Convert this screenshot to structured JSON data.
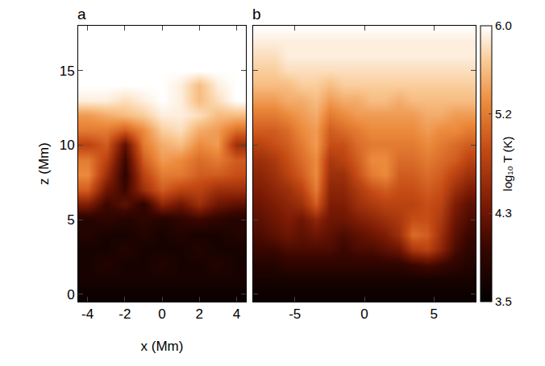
{
  "chart_data": [
    {
      "type": "heatmap",
      "title": "a",
      "x_label": "x (Mm)",
      "y_label": "z (Mm)",
      "x": [
        -4,
        -3,
        -2,
        -1,
        0,
        1,
        2,
        3,
        4
      ],
      "y": [
        0,
        1,
        2,
        3,
        4,
        5,
        6,
        7,
        8,
        9,
        10,
        11,
        12,
        13,
        14,
        15,
        16,
        17,
        18
      ],
      "xlim": [
        -4.5,
        4.5
      ],
      "xticks": [
        -4,
        -2,
        0,
        2,
        4
      ],
      "ylim": [
        -0.5,
        18
      ],
      "yticks": [
        0,
        5,
        10,
        15
      ],
      "values": [
        [
          3.6,
          3.6,
          3.6,
          3.6,
          3.6,
          3.6,
          3.6,
          3.6,
          3.6
        ],
        [
          3.7,
          3.7,
          3.7,
          3.7,
          3.7,
          3.7,
          3.7,
          3.7,
          3.7
        ],
        [
          3.7,
          3.8,
          3.7,
          3.7,
          3.8,
          3.7,
          3.7,
          3.8,
          3.7
        ],
        [
          3.7,
          3.7,
          3.8,
          3.7,
          3.7,
          3.7,
          3.8,
          3.7,
          3.7
        ],
        [
          3.8,
          3.7,
          3.7,
          3.8,
          3.7,
          3.8,
          3.7,
          3.7,
          3.8
        ],
        [
          3.8,
          3.9,
          3.8,
          3.9,
          3.8,
          3.9,
          4.0,
          3.9,
          3.8
        ],
        [
          4.4,
          4.0,
          4.2,
          3.9,
          4.5,
          4.3,
          4.6,
          4.3,
          4.2
        ],
        [
          5.0,
          4.3,
          4.0,
          4.6,
          5.0,
          4.8,
          4.8,
          4.6,
          4.6
        ],
        [
          5.3,
          4.6,
          3.9,
          4.8,
          5.2,
          5.2,
          5.0,
          5.0,
          4.9
        ],
        [
          5.2,
          4.8,
          4.0,
          5.0,
          5.4,
          5.3,
          5.1,
          5.2,
          5.0
        ],
        [
          4.8,
          5.0,
          4.2,
          5.2,
          5.5,
          5.6,
          5.3,
          5.4,
          4.6
        ],
        [
          5.2,
          5.2,
          5.0,
          5.3,
          5.7,
          5.8,
          5.5,
          5.4,
          5.1
        ],
        [
          5.4,
          5.5,
          5.6,
          5.7,
          5.9,
          5.9,
          5.8,
          5.6,
          5.6
        ],
        [
          5.9,
          5.9,
          5.8,
          5.9,
          6.0,
          5.9,
          5.6,
          5.8,
          6.0
        ],
        [
          6.0,
          6.0,
          6.0,
          6.0,
          6.0,
          5.9,
          5.6,
          5.9,
          6.0
        ],
        [
          6.0,
          6.0,
          6.0,
          6.0,
          6.0,
          6.0,
          6.0,
          6.0,
          6.0
        ],
        [
          6.0,
          6.0,
          6.0,
          6.0,
          6.0,
          6.0,
          6.0,
          6.0,
          6.0
        ],
        [
          6.0,
          6.0,
          6.0,
          6.0,
          6.0,
          6.0,
          6.0,
          6.0,
          6.0
        ],
        [
          6.0,
          6.0,
          6.0,
          6.0,
          6.0,
          6.0,
          6.0,
          6.0,
          6.0
        ]
      ]
    },
    {
      "type": "heatmap",
      "title": "b",
      "tick_labels": "x",
      "x": [
        -7.5,
        -6.5,
        -5.5,
        -4.5,
        -3.5,
        -2.5,
        -1.5,
        -0.5,
        0.5,
        1.5,
        2.5,
        3.5,
        4.5,
        5.5,
        6.5,
        7.5
      ],
      "y": [
        0,
        1,
        2,
        3,
        4,
        5,
        6,
        7,
        8,
        9,
        10,
        11,
        12,
        13,
        14,
        15,
        16,
        17,
        18
      ],
      "xlim": [
        -8,
        8
      ],
      "xticks": [
        -5,
        0,
        5
      ],
      "ylim": [
        -0.5,
        18
      ],
      "yticks": [
        0,
        5,
        10,
        15
      ],
      "values": [
        [
          3.6,
          3.6,
          3.6,
          3.6,
          3.6,
          3.6,
          3.6,
          3.6,
          3.6,
          3.6,
          3.6,
          3.6,
          3.6,
          3.6,
          3.6,
          3.6
        ],
        [
          3.7,
          3.7,
          3.7,
          3.7,
          3.7,
          3.7,
          3.7,
          3.7,
          3.7,
          3.7,
          3.7,
          3.7,
          3.7,
          3.7,
          3.7,
          3.7
        ],
        [
          3.8,
          3.8,
          3.9,
          3.9,
          3.9,
          3.9,
          3.9,
          3.9,
          3.9,
          3.9,
          3.9,
          4.0,
          4.1,
          4.0,
          3.9,
          3.8
        ],
        [
          4.0,
          4.0,
          4.1,
          4.1,
          4.1,
          4.1,
          4.0,
          4.1,
          4.1,
          4.2,
          4.3,
          4.7,
          4.8,
          4.5,
          4.1,
          3.9
        ],
        [
          4.1,
          4.2,
          4.3,
          4.2,
          4.3,
          4.2,
          4.1,
          4.2,
          4.3,
          4.4,
          4.6,
          5.1,
          5.0,
          4.6,
          4.2,
          4.0
        ],
        [
          4.2,
          4.3,
          4.4,
          4.3,
          4.5,
          4.3,
          4.3,
          4.4,
          4.5,
          4.6,
          4.7,
          4.9,
          4.9,
          4.7,
          4.3,
          4.1
        ],
        [
          4.3,
          4.4,
          4.5,
          4.6,
          5.0,
          4.4,
          4.4,
          4.6,
          4.7,
          4.8,
          4.8,
          4.8,
          4.9,
          4.8,
          4.4,
          4.2
        ],
        [
          4.4,
          4.5,
          4.6,
          4.8,
          5.2,
          4.5,
          4.5,
          4.7,
          4.9,
          5.0,
          4.9,
          4.9,
          5.0,
          4.9,
          4.6,
          4.4
        ],
        [
          4.5,
          4.6,
          4.8,
          5.0,
          5.3,
          4.6,
          4.6,
          4.9,
          5.2,
          5.3,
          5.0,
          5.0,
          5.1,
          5.0,
          4.8,
          4.6
        ],
        [
          4.6,
          4.7,
          4.9,
          5.1,
          5.3,
          4.7,
          4.8,
          5.0,
          5.3,
          5.3,
          5.1,
          5.1,
          5.2,
          5.1,
          5.0,
          4.8
        ],
        [
          4.8,
          4.9,
          5.0,
          5.2,
          5.4,
          4.9,
          4.9,
          5.1,
          5.2,
          5.2,
          5.2,
          5.2,
          5.3,
          5.2,
          5.1,
          5.0
        ],
        [
          5.0,
          5.0,
          5.1,
          5.3,
          5.4,
          5.0,
          5.1,
          5.2,
          5.3,
          5.3,
          5.3,
          5.3,
          5.4,
          5.3,
          5.3,
          5.2
        ],
        [
          5.2,
          5.2,
          5.3,
          5.4,
          5.5,
          5.2,
          5.3,
          5.4,
          5.4,
          5.4,
          5.4,
          5.4,
          5.5,
          5.5,
          5.4,
          5.4
        ],
        [
          5.4,
          5.4,
          5.5,
          5.5,
          5.6,
          5.4,
          5.5,
          5.5,
          5.6,
          5.6,
          5.5,
          5.6,
          5.6,
          5.6,
          5.6,
          5.6
        ],
        [
          5.6,
          5.6,
          5.6,
          5.7,
          5.7,
          5.6,
          5.7,
          5.7,
          5.7,
          5.7,
          5.7,
          5.7,
          5.7,
          5.7,
          5.7,
          5.7
        ],
        [
          5.7,
          5.7,
          5.8,
          5.8,
          5.8,
          5.8,
          5.8,
          5.8,
          5.8,
          5.8,
          5.8,
          5.8,
          5.8,
          5.8,
          5.8,
          5.8
        ],
        [
          5.8,
          5.8,
          5.9,
          5.9,
          5.9,
          5.9,
          5.9,
          5.9,
          5.9,
          5.9,
          5.9,
          5.9,
          5.9,
          5.9,
          5.9,
          5.9
        ],
        [
          5.9,
          5.9,
          5.9,
          5.9,
          5.9,
          5.9,
          5.9,
          5.9,
          5.9,
          5.9,
          5.9,
          5.9,
          5.9,
          5.9,
          5.9,
          5.9
        ],
        [
          6.0,
          6.0,
          6.0,
          6.0,
          6.0,
          6.0,
          6.0,
          6.0,
          6.0,
          6.0,
          6.0,
          6.0,
          6.0,
          6.0,
          6.0,
          6.0
        ]
      ],
      "colorbar": {
        "label": "log₁₀ T (K)",
        "range": [
          3.5,
          6.0
        ],
        "ticks": [
          3.5,
          4.3,
          5.2,
          {
            "value": 6.0,
            "label": "6.0"
          }
        ]
      }
    }
  ]
}
